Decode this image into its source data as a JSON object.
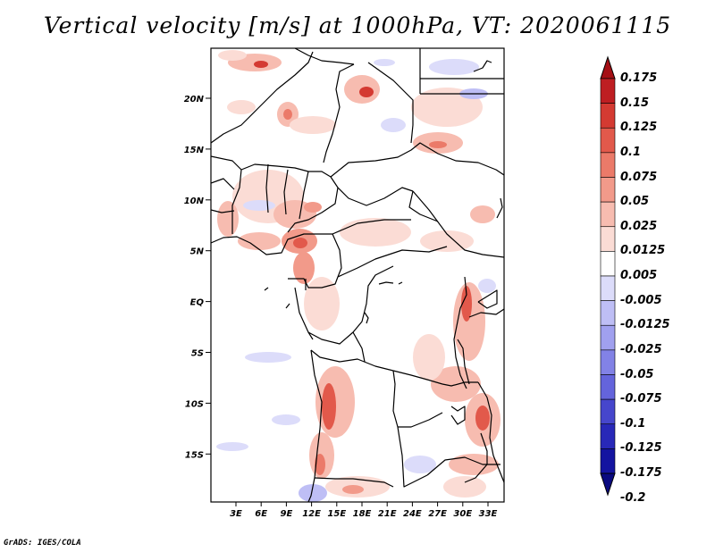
{
  "title": "Vertical velocity [m/s] at 1000hPa, VT: 2020061115",
  "map": {
    "lat_ticks": [
      "20N",
      "15N",
      "10N",
      "5N",
      "EQ",
      "5S",
      "10S",
      "15S"
    ],
    "lon_ticks": [
      "3E",
      "6E",
      "9E",
      "12E",
      "15E",
      "18E",
      "21E",
      "24E",
      "27E",
      "30E",
      "33E"
    ]
  },
  "colorbar": {
    "labels": [
      "0.175",
      "0.15",
      "0.125",
      "0.1",
      "0.075",
      "0.05",
      "0.025",
      "0.0125",
      "0.005",
      "-0.005",
      "-0.0125",
      "-0.025",
      "-0.05",
      "-0.075",
      "-0.1",
      "-0.125",
      "-0.175",
      "-0.2"
    ],
    "colors": [
      "#a50f15",
      "#be1e22",
      "#d43a32",
      "#e2594b",
      "#eb7a69",
      "#f29a8a",
      "#f7bcb0",
      "#fbdcd5",
      "#ffffff",
      "#dcdcfa",
      "#bebef5",
      "#a0a0ef",
      "#8282e6",
      "#6464dc",
      "#4646cc",
      "#2828b8",
      "#1414a0",
      "#0a0a80"
    ]
  },
  "credit": "GrADS: IGES/COLA"
}
